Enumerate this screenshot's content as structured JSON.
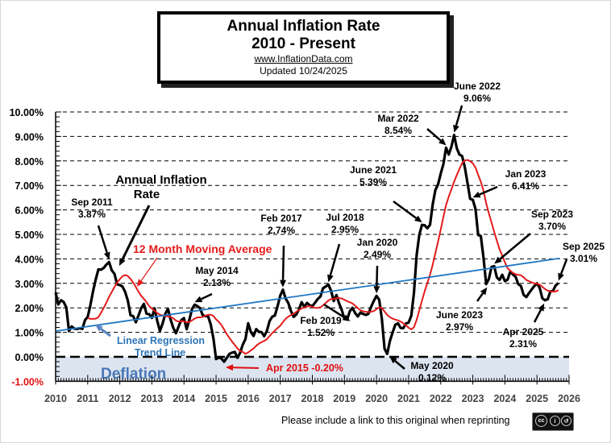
{
  "title": {
    "line1": "Annual  Inflation Rate",
    "line2": "2010 - Present",
    "url": "www.InflationData.com",
    "updated": "Updated   10/24/2025"
  },
  "footer": {
    "text": "Please include a link to this original when reprinting",
    "license_icon": "creative-commons-by-sa-icon"
  },
  "chart_data": {
    "type": "line",
    "title": "Annual Inflation Rate 2010 - Present",
    "xlabel": "",
    "ylabel": "",
    "xlim": [
      2010,
      2026
    ],
    "ylim": [
      -1,
      10
    ],
    "grid": true,
    "x_ticks": [
      "2010",
      "2011",
      "2012",
      "2013",
      "2014",
      "2015",
      "2016",
      "2017",
      "2018",
      "2019",
      "2020",
      "2021",
      "2022",
      "2023",
      "2024",
      "2025",
      "2026"
    ],
    "y_ticks": [
      "10.00%",
      "9.00%",
      "8.00%",
      "7.00%",
      "6.00%",
      "5.00%",
      "4.00%",
      "3.00%",
      "2.00%",
      "1.00%",
      "0.00%",
      "-1.00%"
    ],
    "series": [
      {
        "name": "Annual Inflation Rate",
        "color": "#000000",
        "start": "2010-01",
        "values": [
          2.63,
          2.14,
          2.31,
          2.24,
          2.02,
          1.05,
          1.24,
          1.15,
          1.14,
          1.17,
          1.14,
          1.5,
          1.63,
          2.11,
          2.68,
          3.16,
          3.57,
          3.56,
          3.63,
          3.77,
          3.87,
          3.53,
          3.39,
          2.96,
          2.93,
          2.87,
          2.65,
          2.3,
          1.7,
          1.66,
          1.41,
          1.69,
          1.99,
          2.16,
          1.76,
          1.74,
          1.59,
          1.98,
          1.47,
          1.06,
          1.36,
          1.75,
          1.96,
          1.52,
          1.18,
          0.96,
          1.24,
          1.5,
          1.58,
          1.13,
          1.51,
          1.95,
          2.13,
          2.07,
          1.99,
          1.7,
          1.66,
          1.66,
          1.32,
          0.76,
          -0.09,
          -0.03,
          -0.07,
          -0.2,
          -0.04,
          0.12,
          0.17,
          0.2,
          -0.04,
          0.17,
          0.5,
          0.73,
          1.37,
          1.02,
          0.85,
          1.13,
          1.02,
          1.01,
          0.84,
          1.06,
          1.46,
          1.64,
          1.69,
          2.07,
          2.5,
          2.74,
          2.38,
          2.2,
          1.87,
          1.63,
          1.73,
          1.94,
          2.23,
          2.04,
          2.2,
          2.11,
          2.07,
          2.21,
          2.36,
          2.46,
          2.8,
          2.87,
          2.95,
          2.7,
          2.28,
          2.52,
          2.18,
          1.91,
          1.55,
          1.52,
          1.86,
          2.0,
          1.79,
          1.65,
          1.81,
          1.75,
          1.71,
          1.76,
          2.05,
          2.29,
          2.49,
          2.33,
          1.54,
          0.33,
          0.12,
          0.65,
          0.99,
          1.31,
          1.37,
          1.18,
          1.17,
          1.36,
          1.4,
          1.68,
          2.62,
          4.16,
          4.99,
          5.39,
          5.37,
          5.25,
          5.39,
          6.22,
          6.81,
          7.04,
          7.48,
          7.87,
          8.54,
          8.26,
          8.58,
          9.06,
          8.52,
          8.26,
          8.2,
          7.75,
          7.11,
          6.45,
          6.41,
          6.04,
          4.98,
          4.93,
          4.05,
          2.97,
          3.18,
          3.67,
          3.7,
          3.24,
          3.14,
          3.35,
          3.09,
          3.15,
          3.48,
          3.36,
          3.27,
          2.97,
          2.89,
          2.53,
          2.44,
          2.6,
          2.75,
          2.89,
          3.0,
          2.82,
          2.39,
          2.31,
          2.35,
          2.67,
          2.7,
          2.92,
          3.01
        ]
      },
      {
        "name": "12 Month Moving Average",
        "color": "#e31b1b",
        "start": "2011-01",
        "values": [
          1.59,
          1.55,
          1.55,
          1.56,
          1.62,
          1.8,
          2.0,
          2.22,
          2.45,
          2.65,
          2.85,
          3.03,
          3.17,
          3.29,
          3.34,
          3.3,
          3.18,
          3.03,
          2.85,
          2.66,
          2.49,
          2.37,
          2.23,
          2.07,
          1.97,
          1.88,
          1.79,
          1.72,
          1.69,
          1.67,
          1.65,
          1.63,
          1.57,
          1.48,
          1.44,
          1.46,
          1.45,
          1.41,
          1.42,
          1.49,
          1.56,
          1.61,
          1.61,
          1.63,
          1.67,
          1.72,
          1.72,
          1.67,
          1.53,
          1.43,
          1.3,
          1.12,
          0.93,
          0.77,
          0.62,
          0.48,
          0.34,
          0.24,
          0.2,
          0.12,
          0.18,
          0.26,
          0.34,
          0.45,
          0.54,
          0.6,
          0.65,
          0.72,
          0.85,
          0.97,
          1.07,
          1.18,
          1.27,
          1.42,
          1.55,
          1.64,
          1.71,
          1.76,
          1.84,
          1.91,
          1.98,
          2.01,
          2.05,
          2.07,
          2.04,
          2.0,
          2.0,
          2.02,
          2.1,
          2.2,
          2.3,
          2.36,
          2.36,
          2.4,
          2.4,
          2.38,
          2.33,
          2.27,
          2.23,
          2.18,
          2.09,
          1.99,
          1.9,
          1.86,
          1.84,
          1.83,
          1.84,
          1.87,
          1.95,
          2.02,
          1.99,
          1.85,
          1.71,
          1.62,
          1.56,
          1.52,
          1.49,
          1.44,
          1.37,
          1.28,
          1.19,
          1.12,
          1.21,
          1.51,
          1.9,
          2.3,
          2.68,
          3.01,
          3.35,
          3.76,
          4.23,
          4.7,
          5.2,
          5.71,
          6.2,
          6.54,
          6.84,
          7.15,
          7.42,
          7.67,
          7.91,
          8.02,
          8.04,
          7.99,
          7.9,
          7.73,
          7.43,
          7.15,
          6.78,
          6.27,
          5.86,
          5.48,
          5.1,
          4.74,
          4.39,
          4.13,
          3.86,
          3.62,
          3.52,
          3.43,
          3.37,
          3.35,
          3.33,
          3.25,
          3.14,
          3.09,
          3.04,
          3.0,
          2.99,
          2.95,
          2.86,
          2.77,
          2.7,
          2.68,
          2.66,
          2.67,
          2.72
        ]
      },
      {
        "name": "Linear Regression Trend Line",
        "color": "#1f77c4",
        "x": [
          2010.0,
          2025.7
        ],
        "values": [
          1.05,
          4.02
        ]
      }
    ],
    "shaded_region": {
      "label": "Deflation",
      "y_range": [
        -1,
        0
      ],
      "color": "#dce4f0"
    },
    "legend_labels": [
      {
        "text": "Annual Inflation Rate",
        "color": "#000000"
      },
      {
        "text": "12 Month Moving Average",
        "color": "#e31b1b"
      },
      {
        "text": "Linear Regression Trend Line",
        "color": "#2e75b6"
      }
    ],
    "annotations": [
      {
        "label": "Sep 2011",
        "value": "3.87%",
        "x": 2011.67,
        "y": 3.87
      },
      {
        "label": "May 2014",
        "value": "2.13%",
        "x": 2014.33,
        "y": 2.13
      },
      {
        "label": "Apr 2015",
        "value": "-0.20%",
        "x": 2015.25,
        "y": -0.2
      },
      {
        "label": "Feb 2017",
        "value": "2.74%",
        "x": 2017.08,
        "y": 2.74
      },
      {
        "label": "Jul 2018",
        "value": "2.95%",
        "x": 2018.5,
        "y": 2.95
      },
      {
        "label": "Feb 2019",
        "value": "1.52%",
        "x": 2019.08,
        "y": 1.52
      },
      {
        "label": "Jan 2020",
        "value": "2.49%",
        "x": 2020.0,
        "y": 2.49
      },
      {
        "label": "May 2020",
        "value": "0.12%",
        "x": 2020.33,
        "y": 0.12
      },
      {
        "label": "June 2021",
        "value": "5.39%",
        "x": 2021.42,
        "y": 5.39
      },
      {
        "label": "Mar 2022",
        "value": "8.54%",
        "x": 2022.17,
        "y": 8.54
      },
      {
        "label": "June 2022",
        "value": "9.06%",
        "x": 2022.42,
        "y": 9.06
      },
      {
        "label": "Jan 2023",
        "value": "6.41%",
        "x": 2023.0,
        "y": 6.41
      },
      {
        "label": "June 2023",
        "value": "2.97%",
        "x": 2023.42,
        "y": 2.97
      },
      {
        "label": "Sep 2023",
        "value": "3.70%",
        "x": 2023.67,
        "y": 3.7
      },
      {
        "label": "Apr 2025",
        "value": "2.31%",
        "x": 2025.25,
        "y": 2.31
      },
      {
        "label": "Sep 2025",
        "value": "3.01%",
        "x": 2025.67,
        "y": 3.01
      }
    ]
  }
}
